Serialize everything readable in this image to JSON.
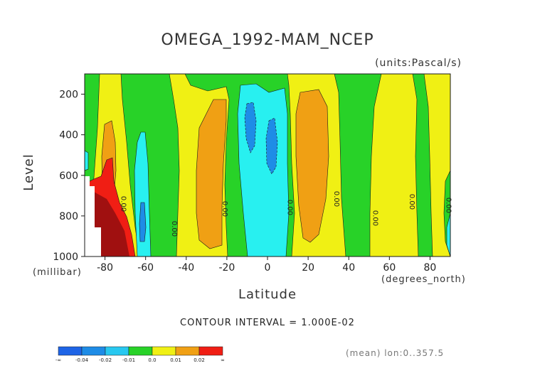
{
  "chart_data": {
    "type": "heatmap",
    "title": "OMEGA_1992-MAM_NCEP",
    "units": "(units:Pascal/s)",
    "ylabel": "Level",
    "ylabel_units": "(millibar)",
    "xlabel": "Latitude",
    "xlabel_units": "(degrees_north)",
    "xlim": [
      -90,
      90
    ],
    "ylim": [
      1000,
      100
    ],
    "x_ticks": [
      -80,
      -60,
      -40,
      -20,
      0,
      20,
      40,
      60,
      80
    ],
    "x_tick_labels": [
      "-80",
      "-60",
      "-40",
      "-20",
      "0",
      "20",
      "40",
      "60",
      "80"
    ],
    "y_ticks": [
      200,
      400,
      600,
      800,
      1000
    ],
    "y_tick_labels": [
      "200",
      "400",
      "600",
      "800",
      "1000"
    ],
    "contour_interval_label": "CONTOUR INTERVAL = 1.000E-02",
    "contour_labels": [
      "0.00",
      "0.00",
      "0.00",
      "0.00",
      "0.00",
      "0.00",
      "0.00",
      "0.00"
    ],
    "footer": "(mean) lon:0..357.5",
    "colorbar": {
      "labels": [
        "-∞",
        "-0.04",
        "-0.02",
        "-0.01",
        "0.0",
        "0.01",
        "0.02",
        "∞"
      ],
      "colors": [
        "#1e64e6",
        "#1e8ce6",
        "#28c8f0",
        "#28d228",
        "#f0f014",
        "#f0a014",
        "#f01e14"
      ]
    },
    "regions": [
      {
        "name": "yellow band",
        "x": [
          -83,
          -63
        ],
        "value": 0.005
      },
      {
        "name": "orange core",
        "x": [
          -77,
          -70
        ],
        "p": [
          320,
          700
        ],
        "value": 0.015
      },
      {
        "name": "red core",
        "x": [
          -84,
          -70
        ],
        "p": [
          520,
          1000
        ],
        "value": 0.03
      },
      {
        "name": "cyan band",
        "x": [
          -66,
          -57
        ],
        "p": [
          330,
          1000
        ],
        "value": -0.015
      },
      {
        "name": "yellow band",
        "x": [
          -48,
          -16
        ],
        "value": 0.005
      },
      {
        "name": "orange core",
        "x": [
          -34,
          -18
        ],
        "p": [
          230,
          960
        ],
        "value": 0.015
      },
      {
        "name": "cyan band",
        "x": [
          -13,
          10
        ],
        "value": -0.015
      },
      {
        "name": "blue core",
        "x": [
          -10,
          -5
        ],
        "p": [
          260,
          450
        ],
        "value": -0.025
      },
      {
        "name": "blue core",
        "x": [
          0,
          5
        ],
        "p": [
          370,
          560
        ],
        "value": -0.025
      },
      {
        "name": "yellow band",
        "x": [
          10,
          40
        ],
        "value": 0.005
      },
      {
        "name": "orange core",
        "x": [
          14,
          30
        ],
        "p": [
          190,
          940
        ],
        "value": 0.015
      },
      {
        "name": "yellow band",
        "x": [
          52,
          62
        ],
        "value": 0.005
      },
      {
        "name": "yellow band",
        "x": [
          75,
          90
        ],
        "value": 0.005
      }
    ]
  }
}
